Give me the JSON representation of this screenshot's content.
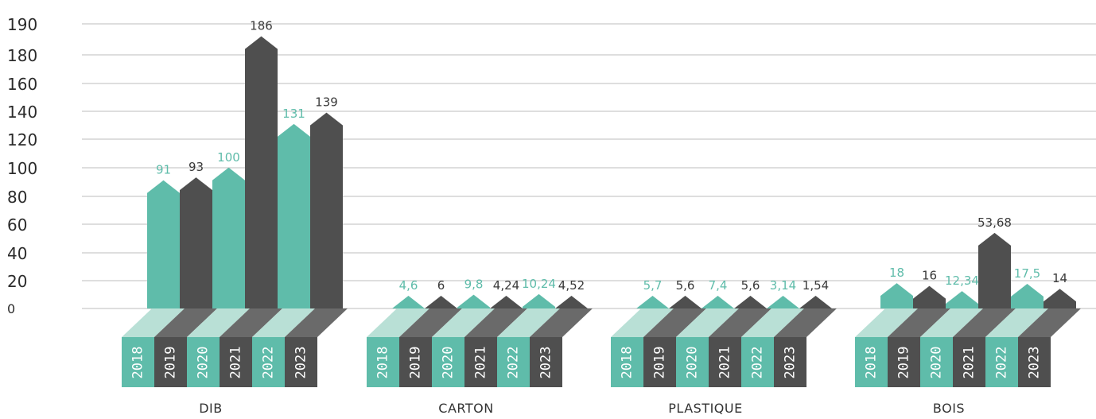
{
  "chart_data": {
    "type": "bar",
    "categories": [
      "DIB",
      "CARTON",
      "PLASTIQUE",
      "BOIS"
    ],
    "years": [
      "2018",
      "2019",
      "2020",
      "2021",
      "2022",
      "2023"
    ],
    "values": [
      [
        91,
        93,
        100,
        186,
        131,
        139
      ],
      [
        4.6,
        6,
        9.8,
        4.24,
        10.24,
        4.52
      ],
      [
        5.7,
        5.6,
        7.4,
        5.6,
        3.14,
        1.54
      ],
      [
        18,
        16,
        12.34,
        53.68,
        17.5,
        14
      ]
    ],
    "value_labels": [
      [
        "91",
        "93",
        "100",
        "186",
        "131",
        "139"
      ],
      [
        "4,6",
        "6",
        "9,8",
        "4,24",
        "10,24",
        "4,52"
      ],
      [
        "5,7",
        "5,6",
        "7,4",
        "5,6",
        "3,14",
        "1,54"
      ],
      [
        "18",
        "16",
        "12,34",
        "53,68",
        "17,5",
        "14"
      ]
    ],
    "y_ticks": [
      "0",
      "20",
      "40",
      "60",
      "80",
      "100",
      "120",
      "140",
      "160",
      "180",
      "190"
    ],
    "colors": {
      "teal": "#5fbcaa",
      "dark": "#4f4f4f",
      "teal_light": "#b9e0d6",
      "dark_shadow": "#6a6a6a",
      "grid": "#bdbdbd"
    },
    "grid": true
  }
}
